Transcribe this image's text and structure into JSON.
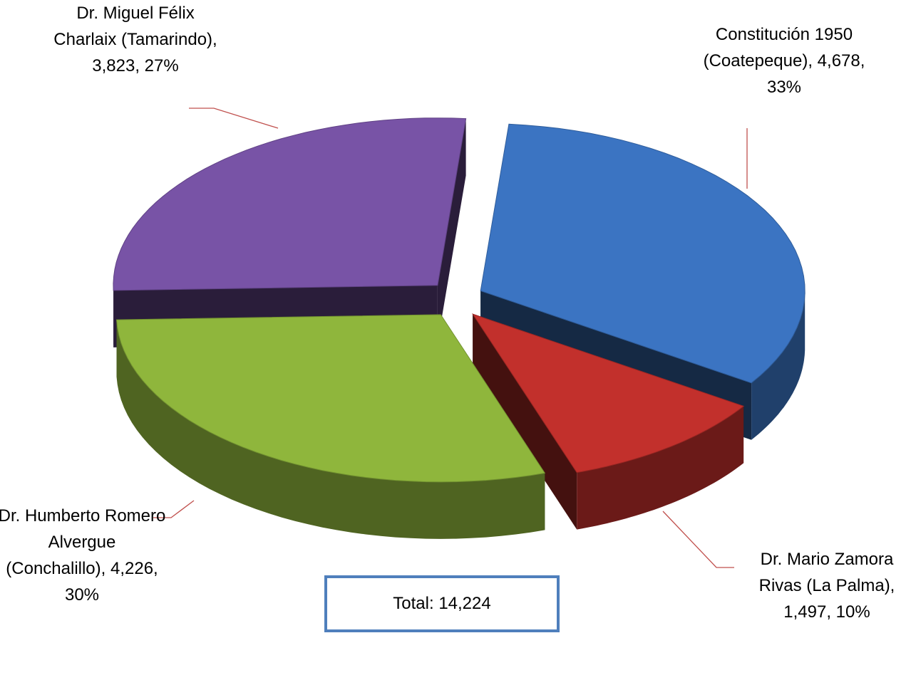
{
  "chart_data": {
    "type": "pie",
    "labels": [
      "Constitución 1950 (Coatepeque), 4,678, 33%",
      "Dr. Mario Zamora Rivas (La Palma), 1,497, 10%",
      "Dr. Humberto Romero Alvergue (Conchalillo), 4,226, 30%",
      "Dr. Miguel Félix Charlaix (Tamarindo), 3,823, 27%"
    ],
    "values": [
      4678,
      1497,
      4226,
      3823
    ],
    "colors": [
      "#3b74c2",
      "#c2302c",
      "#8fb63c",
      "#7853a6"
    ],
    "annotation": "Total: 14,224"
  }
}
